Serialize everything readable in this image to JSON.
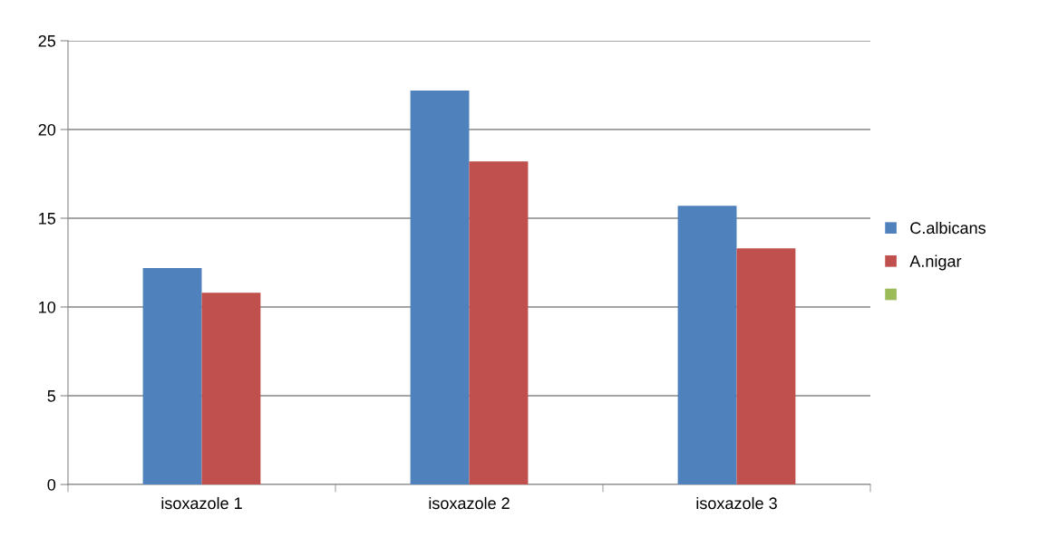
{
  "chart_data": {
    "type": "bar",
    "categories": [
      "isoxazole 1",
      "isoxazole 2",
      "isoxazole 3"
    ],
    "series": [
      {
        "name": "C.albicans",
        "color": "#4f81bd",
        "values": [
          12.2,
          22.2,
          15.7
        ]
      },
      {
        "name": "A.nigar",
        "color": "#c0504d",
        "values": [
          10.8,
          18.2,
          13.3
        ]
      },
      {
        "color": "#9bbb59",
        "values": [
          null,
          null,
          null
        ]
      }
    ],
    "ylim": [
      0,
      25
    ],
    "yticks": [
      0,
      5,
      10,
      15,
      20,
      25
    ],
    "grid": "y",
    "legend": "right"
  }
}
